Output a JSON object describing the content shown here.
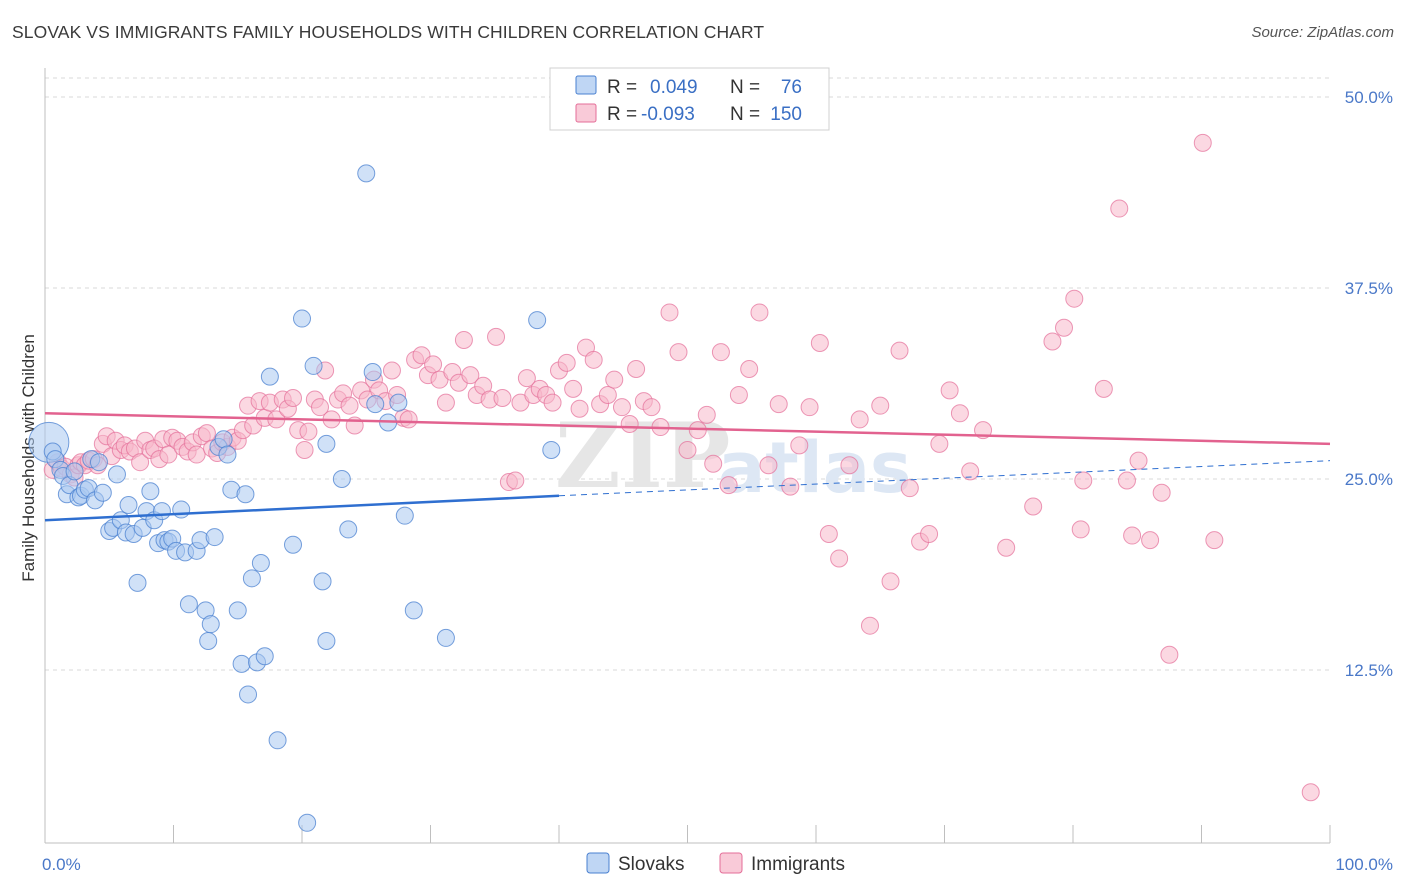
{
  "title": "SLOVAK VS IMMIGRANTS FAMILY HOUSEHOLDS WITH CHILDREN CORRELATION CHART",
  "source": "Source: ZipAtlas.com",
  "watermark": {
    "zip": "ZIP",
    "atlas": "atlas"
  },
  "colors": {
    "slovak_fill": "#a9c8f0",
    "slovak_stroke": "#4a80d0",
    "slovak_line": "#2f6fd0",
    "immig_fill": "#f7b8cb",
    "immig_stroke": "#e46e98",
    "immig_line": "#e2628f",
    "grid": "#d8d8d8",
    "axis": "#bfbfbf",
    "tick_text": "#4a78c8"
  },
  "legend": {
    "rows": [
      {
        "r_label": "R =",
        "r_value": "0.049",
        "n_label": "N =",
        "n_value": "76"
      },
      {
        "r_label": "R =",
        "r_value": "-0.093",
        "n_label": "N =",
        "n_value": "150"
      }
    ]
  },
  "chart_data": {
    "type": "scatter",
    "title": "SLOVAK VS IMMIGRANTS FAMILY HOUSEHOLDS WITH CHILDREN CORRELATION CHART",
    "xlabel": "",
    "ylabel": "Family Households with Children",
    "xlim": [
      0,
      100
    ],
    "ylim": [
      0,
      50
    ],
    "x_tick_labels": [
      "0.0%",
      "100.0%"
    ],
    "y_ticks": [
      12.5,
      25.0,
      37.5,
      50.0
    ],
    "y_tick_labels": [
      "12.5%",
      "25.0%",
      "37.5%",
      "50.0%"
    ],
    "grid": true,
    "legend_position": "top-center",
    "series": [
      {
        "name": "Slovaks",
        "r": 0.049,
        "n": 76,
        "trend": {
          "x0": 0,
          "y0": 22.3,
          "x1": 40,
          "y1": 23.9,
          "dash_x1": 100,
          "dash_y1": 26.2
        },
        "points": [
          [
            0.3,
            27.4
          ],
          [
            0.6,
            26.8
          ],
          [
            0.8,
            26.3
          ],
          [
            1.2,
            25.6
          ],
          [
            1.4,
            25.2
          ],
          [
            1.7,
            24.0
          ],
          [
            1.9,
            24.6
          ],
          [
            2.3,
            25.5
          ],
          [
            2.6,
            23.8
          ],
          [
            2.8,
            23.9
          ],
          [
            3.1,
            24.3
          ],
          [
            3.4,
            24.4
          ],
          [
            3.6,
            26.3
          ],
          [
            3.9,
            23.6
          ],
          [
            4.2,
            26.1
          ],
          [
            4.5,
            24.1
          ],
          [
            5.0,
            21.6
          ],
          [
            5.3,
            21.8
          ],
          [
            5.6,
            25.3
          ],
          [
            5.9,
            22.3
          ],
          [
            6.3,
            21.5
          ],
          [
            6.5,
            23.3
          ],
          [
            6.9,
            21.4
          ],
          [
            7.2,
            18.2
          ],
          [
            7.6,
            21.8
          ],
          [
            7.9,
            22.9
          ],
          [
            8.2,
            24.2
          ],
          [
            8.5,
            22.3
          ],
          [
            8.8,
            20.8
          ],
          [
            9.1,
            22.9
          ],
          [
            9.3,
            21.0
          ],
          [
            9.6,
            20.9
          ],
          [
            9.9,
            21.1
          ],
          [
            10.2,
            20.3
          ],
          [
            10.6,
            23.0
          ],
          [
            10.9,
            20.2
          ],
          [
            11.2,
            16.8
          ],
          [
            11.8,
            20.3
          ],
          [
            12.1,
            21.0
          ],
          [
            12.5,
            16.4
          ],
          [
            12.7,
            14.4
          ],
          [
            12.9,
            15.5
          ],
          [
            13.2,
            21.2
          ],
          [
            13.5,
            27.1
          ],
          [
            13.9,
            27.6
          ],
          [
            14.2,
            26.6
          ],
          [
            14.5,
            24.3
          ],
          [
            15.0,
            16.4
          ],
          [
            15.3,
            12.9
          ],
          [
            15.6,
            24.0
          ],
          [
            15.8,
            10.9
          ],
          [
            16.1,
            18.5
          ],
          [
            16.5,
            13.0
          ],
          [
            16.8,
            19.5
          ],
          [
            17.1,
            13.4
          ],
          [
            17.5,
            31.7
          ],
          [
            18.1,
            7.9
          ],
          [
            19.3,
            20.7
          ],
          [
            20.0,
            35.5
          ],
          [
            20.4,
            2.5
          ],
          [
            20.9,
            32.4
          ],
          [
            21.6,
            18.3
          ],
          [
            21.9,
            14.4
          ],
          [
            21.9,
            27.3
          ],
          [
            23.1,
            25.0
          ],
          [
            23.6,
            21.7
          ],
          [
            25.0,
            45.0
          ],
          [
            25.5,
            32.0
          ],
          [
            25.7,
            29.9
          ],
          [
            26.7,
            28.7
          ],
          [
            27.5,
            30.0
          ],
          [
            28.0,
            22.6
          ],
          [
            28.7,
            16.4
          ],
          [
            31.2,
            14.6
          ],
          [
            38.3,
            35.4
          ],
          [
            39.4,
            26.9
          ]
        ]
      },
      {
        "name": "Immigrants",
        "r": -0.093,
        "n": 150,
        "trend": {
          "x0": 0,
          "y0": 29.3,
          "x1": 100,
          "y1": 27.3
        },
        "points": [
          [
            0.6,
            25.6
          ],
          [
            1.0,
            26.1
          ],
          [
            1.3,
            25.7
          ],
          [
            1.6,
            25.8
          ],
          [
            2.0,
            25.3
          ],
          [
            2.3,
            25.1
          ],
          [
            2.6,
            25.9
          ],
          [
            2.8,
            26.1
          ],
          [
            3.1,
            25.9
          ],
          [
            3.4,
            26.2
          ],
          [
            3.8,
            26.3
          ],
          [
            4.1,
            25.9
          ],
          [
            4.5,
            27.3
          ],
          [
            4.8,
            27.8
          ],
          [
            5.2,
            26.5
          ],
          [
            5.5,
            27.5
          ],
          [
            5.9,
            26.9
          ],
          [
            6.2,
            27.2
          ],
          [
            6.6,
            26.8
          ],
          [
            7.0,
            27.0
          ],
          [
            7.4,
            26.1
          ],
          [
            7.8,
            27.5
          ],
          [
            8.2,
            26.9
          ],
          [
            8.5,
            27.0
          ],
          [
            8.9,
            26.3
          ],
          [
            9.2,
            27.6
          ],
          [
            9.6,
            26.6
          ],
          [
            9.9,
            27.7
          ],
          [
            10.3,
            27.5
          ],
          [
            10.7,
            27.1
          ],
          [
            11.1,
            26.8
          ],
          [
            11.5,
            27.4
          ],
          [
            11.8,
            26.6
          ],
          [
            12.2,
            27.8
          ],
          [
            12.6,
            28.0
          ],
          [
            13.0,
            27.0
          ],
          [
            13.4,
            26.7
          ],
          [
            13.8,
            27.4
          ],
          [
            14.2,
            27.1
          ],
          [
            14.6,
            27.7
          ],
          [
            15.0,
            27.5
          ],
          [
            15.4,
            28.2
          ],
          [
            15.8,
            29.8
          ],
          [
            16.2,
            28.5
          ],
          [
            16.7,
            30.1
          ],
          [
            17.1,
            29.0
          ],
          [
            17.5,
            30.0
          ],
          [
            18.0,
            28.9
          ],
          [
            18.5,
            30.2
          ],
          [
            18.9,
            29.6
          ],
          [
            19.3,
            30.3
          ],
          [
            19.7,
            28.2
          ],
          [
            20.2,
            26.9
          ],
          [
            20.5,
            28.1
          ],
          [
            21.0,
            30.2
          ],
          [
            21.4,
            29.7
          ],
          [
            21.8,
            32.1
          ],
          [
            22.3,
            28.9
          ],
          [
            22.8,
            30.2
          ],
          [
            23.2,
            30.6
          ],
          [
            23.7,
            29.8
          ],
          [
            24.1,
            28.5
          ],
          [
            24.6,
            30.8
          ],
          [
            25.1,
            30.2
          ],
          [
            25.6,
            31.5
          ],
          [
            26.0,
            30.8
          ],
          [
            26.5,
            30.1
          ],
          [
            27.0,
            32.1
          ],
          [
            27.4,
            30.5
          ],
          [
            27.9,
            29.0
          ],
          [
            28.3,
            28.9
          ],
          [
            28.8,
            32.8
          ],
          [
            29.3,
            33.1
          ],
          [
            29.8,
            31.8
          ],
          [
            30.2,
            32.5
          ],
          [
            30.7,
            31.5
          ],
          [
            31.2,
            30.0
          ],
          [
            31.7,
            32.0
          ],
          [
            32.2,
            31.3
          ],
          [
            32.6,
            34.1
          ],
          [
            33.1,
            31.8
          ],
          [
            33.6,
            30.5
          ],
          [
            34.1,
            31.1
          ],
          [
            34.6,
            30.2
          ],
          [
            35.1,
            34.3
          ],
          [
            35.6,
            30.3
          ],
          [
            36.1,
            24.8
          ],
          [
            36.6,
            24.9
          ],
          [
            37.0,
            30.0
          ],
          [
            37.5,
            31.6
          ],
          [
            38.0,
            30.5
          ],
          [
            38.5,
            30.9
          ],
          [
            39.0,
            30.5
          ],
          [
            39.5,
            30.0
          ],
          [
            40.0,
            32.1
          ],
          [
            40.6,
            32.6
          ],
          [
            41.1,
            30.9
          ],
          [
            41.6,
            29.6
          ],
          [
            42.1,
            33.6
          ],
          [
            42.7,
            32.8
          ],
          [
            43.2,
            29.9
          ],
          [
            43.8,
            30.5
          ],
          [
            44.3,
            31.5
          ],
          [
            44.9,
            29.7
          ],
          [
            45.5,
            28.6
          ],
          [
            46.0,
            32.2
          ],
          [
            46.6,
            30.1
          ],
          [
            47.2,
            29.7
          ],
          [
            47.9,
            28.4
          ],
          [
            48.6,
            35.9
          ],
          [
            49.3,
            33.3
          ],
          [
            50.0,
            26.9
          ],
          [
            50.8,
            28.2
          ],
          [
            51.5,
            29.2
          ],
          [
            52.0,
            26.0
          ],
          [
            52.6,
            33.3
          ],
          [
            53.2,
            24.6
          ],
          [
            54.0,
            30.5
          ],
          [
            54.8,
            32.2
          ],
          [
            55.6,
            35.9
          ],
          [
            56.3,
            25.9
          ],
          [
            57.1,
            29.9
          ],
          [
            58.0,
            24.5
          ],
          [
            58.7,
            27.2
          ],
          [
            59.5,
            29.7
          ],
          [
            60.3,
            33.9
          ],
          [
            61.0,
            21.4
          ],
          [
            61.8,
            19.8
          ],
          [
            62.6,
            25.9
          ],
          [
            63.4,
            28.9
          ],
          [
            64.2,
            15.4
          ],
          [
            65.0,
            29.8
          ],
          [
            65.8,
            18.3
          ],
          [
            66.5,
            33.4
          ],
          [
            67.3,
            24.4
          ],
          [
            68.1,
            20.9
          ],
          [
            68.8,
            21.4
          ],
          [
            69.6,
            27.3
          ],
          [
            70.4,
            30.8
          ],
          [
            71.2,
            29.3
          ],
          [
            72.0,
            25.5
          ],
          [
            73.0,
            28.2
          ],
          [
            74.8,
            20.5
          ],
          [
            76.9,
            23.2
          ],
          [
            78.4,
            34.0
          ],
          [
            79.3,
            34.9
          ],
          [
            80.1,
            36.8
          ],
          [
            80.6,
            21.7
          ],
          [
            80.8,
            24.9
          ],
          [
            82.4,
            30.9
          ],
          [
            83.6,
            42.7
          ],
          [
            84.2,
            24.9
          ],
          [
            84.6,
            21.3
          ],
          [
            85.1,
            26.2
          ],
          [
            86.0,
            21.0
          ],
          [
            86.9,
            24.1
          ],
          [
            87.5,
            13.5
          ],
          [
            90.1,
            47.0
          ],
          [
            91.0,
            21.0
          ],
          [
            98.5,
            4.5
          ]
        ]
      }
    ]
  },
  "bottom_legend": [
    {
      "label": "Slovaks"
    },
    {
      "label": "Immigrants"
    }
  ]
}
